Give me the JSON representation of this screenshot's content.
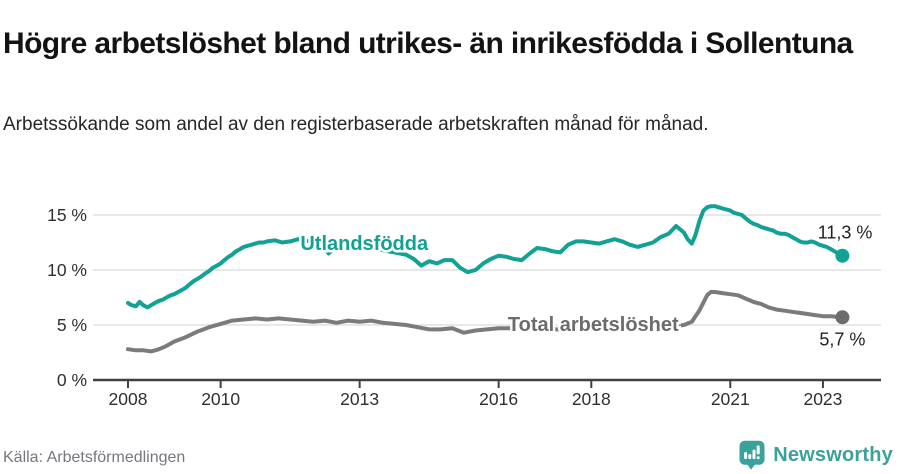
{
  "header": {
    "title": "Högre arbetslöshet bland utrikes- än inrikesfödda i Sollentuna",
    "subtitle": "Arbetssökande som andel av den registerbaserade arbetskraften månad för månad."
  },
  "footer": {
    "source": "Källa: Arbetsförmedlingen",
    "brand": "Newsworthy",
    "brand_icon": "newsworthy-speech-bubble-bar-chart-icon"
  },
  "colors": {
    "accent_teal": "#12a195",
    "series_gray": "#7b7b7b",
    "label_gray": "#6c6c6c",
    "brand_teal": "#3ba19b",
    "annotation_text": "#1f1f1f",
    "axis_text": "#2f2f2f",
    "gridline": "#dadada",
    "axis_line": "#404040"
  },
  "chart_data": {
    "type": "line",
    "title": "Högre arbetslöshet bland utrikes- än inrikesfödda i Sollentuna",
    "subtitle": "Arbetssökande som andel av den registerbaserade arbetskraften månad för månad.",
    "xlabel": "",
    "ylabel": "",
    "grid": true,
    "legend_position": "inline-labels",
    "x_range": [
      2007.9,
      2023.8
    ],
    "ylim": [
      0,
      16.5
    ],
    "x_axis": {
      "ticks": [
        {
          "value": 2008,
          "label": "2008"
        },
        {
          "value": 2010,
          "label": "2010"
        },
        {
          "value": 2013,
          "label": "2013"
        },
        {
          "value": 2016,
          "label": "2016"
        },
        {
          "value": 2018,
          "label": "2018"
        },
        {
          "value": 2021,
          "label": "2021"
        },
        {
          "value": 2023,
          "label": "2023"
        }
      ]
    },
    "y_axis": {
      "ticks": [
        {
          "value": 0,
          "label": "0 %"
        },
        {
          "value": 5,
          "label": "5 %"
        },
        {
          "value": 10,
          "label": "10 %"
        },
        {
          "value": 15,
          "label": "15 %"
        }
      ]
    },
    "series": [
      {
        "id": "utlandsfodda",
        "name": "Utlandsfödda",
        "color": "#12a195",
        "label_color": "#12a195",
        "label_anchor": {
          "x": 2011.72,
          "value": 11.82
        },
        "end_label": "11,3 %",
        "end_label_side": "above",
        "last_value": 11.3,
        "points": [
          [
            2008.0,
            7.0
          ],
          [
            2008.08,
            6.8
          ],
          [
            2008.17,
            6.7
          ],
          [
            2008.25,
            7.1
          ],
          [
            2008.33,
            6.8
          ],
          [
            2008.42,
            6.6
          ],
          [
            2008.5,
            6.8
          ],
          [
            2008.58,
            7.0
          ],
          [
            2008.67,
            7.2
          ],
          [
            2008.75,
            7.3
          ],
          [
            2008.83,
            7.5
          ],
          [
            2008.92,
            7.7
          ],
          [
            2009.0,
            7.8
          ],
          [
            2009.08,
            8.0
          ],
          [
            2009.17,
            8.2
          ],
          [
            2009.25,
            8.4
          ],
          [
            2009.33,
            8.7
          ],
          [
            2009.42,
            9.0
          ],
          [
            2009.5,
            9.2
          ],
          [
            2009.58,
            9.4
          ],
          [
            2009.67,
            9.7
          ],
          [
            2009.75,
            9.9
          ],
          [
            2009.83,
            10.2
          ],
          [
            2009.92,
            10.4
          ],
          [
            2010.0,
            10.6
          ],
          [
            2010.08,
            10.9
          ],
          [
            2010.17,
            11.2
          ],
          [
            2010.25,
            11.4
          ],
          [
            2010.33,
            11.7
          ],
          [
            2010.42,
            11.9
          ],
          [
            2010.5,
            12.1
          ],
          [
            2010.58,
            12.2
          ],
          [
            2010.67,
            12.3
          ],
          [
            2010.75,
            12.4
          ],
          [
            2010.83,
            12.5
          ],
          [
            2010.92,
            12.5
          ],
          [
            2011.0,
            12.6
          ],
          [
            2011.17,
            12.7
          ],
          [
            2011.33,
            12.5
          ],
          [
            2011.5,
            12.6
          ],
          [
            2011.67,
            12.8
          ],
          [
            2011.83,
            12.6
          ],
          [
            2012.0,
            12.7
          ],
          [
            2012.17,
            12.6
          ],
          [
            2012.33,
            11.5
          ],
          [
            2012.5,
            12.2
          ],
          [
            2012.67,
            12.4
          ],
          [
            2012.83,
            12.3
          ],
          [
            2013.0,
            12.2
          ],
          [
            2013.25,
            12.0
          ],
          [
            2013.5,
            11.8
          ],
          [
            2013.75,
            11.6
          ],
          [
            2014.0,
            11.4
          ],
          [
            2014.17,
            11.0
          ],
          [
            2014.33,
            10.4
          ],
          [
            2014.5,
            10.8
          ],
          [
            2014.67,
            10.6
          ],
          [
            2014.83,
            10.9
          ],
          [
            2015.0,
            10.9
          ],
          [
            2015.17,
            10.2
          ],
          [
            2015.33,
            9.8
          ],
          [
            2015.5,
            10.0
          ],
          [
            2015.67,
            10.6
          ],
          [
            2015.83,
            11.0
          ],
          [
            2016.0,
            11.3
          ],
          [
            2016.17,
            11.2
          ],
          [
            2016.33,
            11.0
          ],
          [
            2016.5,
            10.9
          ],
          [
            2016.67,
            11.5
          ],
          [
            2016.83,
            12.0
          ],
          [
            2017.0,
            11.9
          ],
          [
            2017.17,
            11.7
          ],
          [
            2017.33,
            11.6
          ],
          [
            2017.5,
            12.3
          ],
          [
            2017.67,
            12.6
          ],
          [
            2017.83,
            12.6
          ],
          [
            2018.0,
            12.5
          ],
          [
            2018.17,
            12.4
          ],
          [
            2018.33,
            12.6
          ],
          [
            2018.5,
            12.8
          ],
          [
            2018.67,
            12.6
          ],
          [
            2018.83,
            12.3
          ],
          [
            2019.0,
            12.1
          ],
          [
            2019.17,
            12.3
          ],
          [
            2019.33,
            12.5
          ],
          [
            2019.5,
            13.0
          ],
          [
            2019.67,
            13.3
          ],
          [
            2019.83,
            14.0
          ],
          [
            2020.0,
            13.4
          ],
          [
            2020.08,
            12.8
          ],
          [
            2020.17,
            12.4
          ],
          [
            2020.25,
            13.2
          ],
          [
            2020.33,
            14.4
          ],
          [
            2020.42,
            15.4
          ],
          [
            2020.5,
            15.7
          ],
          [
            2020.58,
            15.8
          ],
          [
            2020.67,
            15.8
          ],
          [
            2020.75,
            15.7
          ],
          [
            2020.83,
            15.6
          ],
          [
            2020.92,
            15.5
          ],
          [
            2021.0,
            15.4
          ],
          [
            2021.08,
            15.2
          ],
          [
            2021.17,
            15.1
          ],
          [
            2021.25,
            15.0
          ],
          [
            2021.33,
            14.7
          ],
          [
            2021.42,
            14.4
          ],
          [
            2021.5,
            14.2
          ],
          [
            2021.58,
            14.1
          ],
          [
            2021.67,
            13.9
          ],
          [
            2021.75,
            13.8
          ],
          [
            2021.83,
            13.7
          ],
          [
            2021.92,
            13.6
          ],
          [
            2022.0,
            13.4
          ],
          [
            2022.08,
            13.3
          ],
          [
            2022.17,
            13.3
          ],
          [
            2022.25,
            13.2
          ],
          [
            2022.33,
            13.0
          ],
          [
            2022.42,
            12.8
          ],
          [
            2022.5,
            12.6
          ],
          [
            2022.58,
            12.5
          ],
          [
            2022.67,
            12.5
          ],
          [
            2022.75,
            12.6
          ],
          [
            2022.83,
            12.5
          ],
          [
            2022.92,
            12.3
          ],
          [
            2023.0,
            12.2
          ],
          [
            2023.08,
            12.1
          ],
          [
            2023.17,
            11.9
          ],
          [
            2023.25,
            11.7
          ],
          [
            2023.33,
            11.5
          ],
          [
            2023.42,
            11.3
          ]
        ]
      },
      {
        "id": "total-arbetsloshet",
        "name": "Total arbetslöshet",
        "color": "#7b7b7b",
        "label_color": "#6c6c6c",
        "label_anchor": {
          "x": 2016.2,
          "value": 4.45
        },
        "end_label": "5,7 %",
        "end_label_side": "below",
        "last_value": 5.7,
        "points": [
          [
            2008.0,
            2.8
          ],
          [
            2008.17,
            2.7
          ],
          [
            2008.33,
            2.7
          ],
          [
            2008.5,
            2.6
          ],
          [
            2008.67,
            2.8
          ],
          [
            2008.83,
            3.1
          ],
          [
            2009.0,
            3.5
          ],
          [
            2009.25,
            3.9
          ],
          [
            2009.5,
            4.4
          ],
          [
            2009.75,
            4.8
          ],
          [
            2010.0,
            5.1
          ],
          [
            2010.25,
            5.4
          ],
          [
            2010.5,
            5.5
          ],
          [
            2010.75,
            5.6
          ],
          [
            2011.0,
            5.5
          ],
          [
            2011.25,
            5.6
          ],
          [
            2011.5,
            5.5
          ],
          [
            2011.75,
            5.4
          ],
          [
            2012.0,
            5.3
          ],
          [
            2012.25,
            5.4
          ],
          [
            2012.5,
            5.2
          ],
          [
            2012.75,
            5.4
          ],
          [
            2013.0,
            5.3
          ],
          [
            2013.25,
            5.4
          ],
          [
            2013.5,
            5.2
          ],
          [
            2013.75,
            5.1
          ],
          [
            2014.0,
            5.0
          ],
          [
            2014.25,
            4.8
          ],
          [
            2014.5,
            4.6
          ],
          [
            2014.75,
            4.6
          ],
          [
            2015.0,
            4.7
          ],
          [
            2015.25,
            4.3
          ],
          [
            2015.5,
            4.5
          ],
          [
            2015.75,
            4.6
          ],
          [
            2016.0,
            4.7
          ],
          [
            2016.25,
            4.7
          ],
          [
            2016.5,
            4.8
          ],
          [
            2016.75,
            4.7
          ],
          [
            2017.0,
            4.7
          ],
          [
            2017.25,
            4.6
          ],
          [
            2017.5,
            4.6
          ],
          [
            2017.75,
            4.7
          ],
          [
            2018.0,
            4.6
          ],
          [
            2018.25,
            4.6
          ],
          [
            2018.5,
            4.7
          ],
          [
            2018.75,
            4.6
          ],
          [
            2019.0,
            4.6
          ],
          [
            2019.25,
            4.7
          ],
          [
            2019.5,
            4.7
          ],
          [
            2019.75,
            4.9
          ],
          [
            2020.0,
            5.0
          ],
          [
            2020.17,
            5.3
          ],
          [
            2020.33,
            6.3
          ],
          [
            2020.5,
            7.7
          ],
          [
            2020.58,
            8.0
          ],
          [
            2020.67,
            8.0
          ],
          [
            2020.83,
            7.9
          ],
          [
            2021.0,
            7.8
          ],
          [
            2021.17,
            7.7
          ],
          [
            2021.33,
            7.4
          ],
          [
            2021.5,
            7.1
          ],
          [
            2021.67,
            6.9
          ],
          [
            2021.83,
            6.6
          ],
          [
            2022.0,
            6.4
          ],
          [
            2022.17,
            6.3
          ],
          [
            2022.33,
            6.2
          ],
          [
            2022.5,
            6.1
          ],
          [
            2022.67,
            6.0
          ],
          [
            2022.83,
            5.9
          ],
          [
            2023.0,
            5.8
          ],
          [
            2023.17,
            5.8
          ],
          [
            2023.42,
            5.7
          ]
        ]
      }
    ]
  }
}
